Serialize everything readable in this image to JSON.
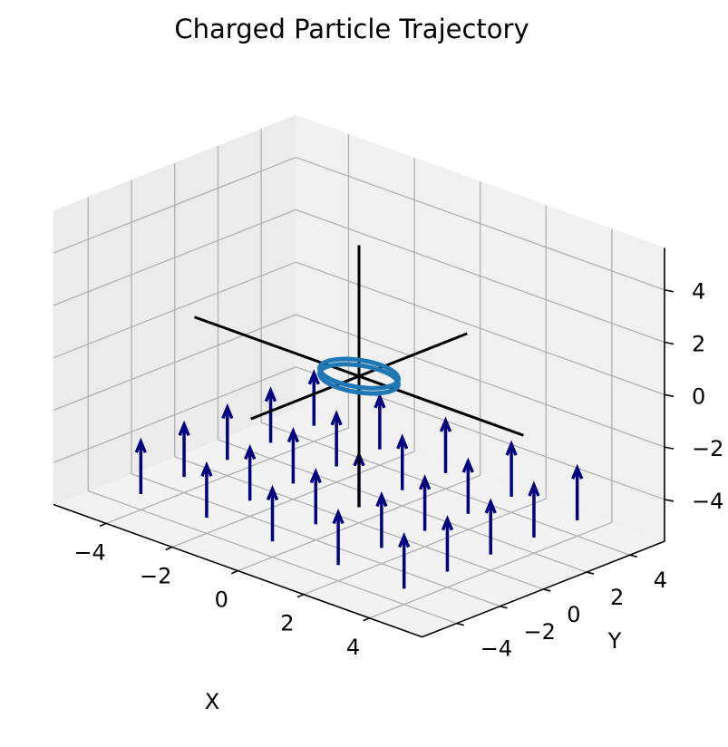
{
  "chart_data": {
    "type": "3d-quiver-line",
    "title": "Charged Particle Trajectory",
    "xlabel": "X",
    "ylabel": "Y",
    "zlabel": "",
    "xlim": [
      -5,
      5
    ],
    "ylim": [
      -5,
      5
    ],
    "zlim": [
      -5,
      5
    ],
    "xticks": [
      "−4",
      "−2",
      "0",
      "2",
      "4"
    ],
    "yticks": [
      "−4",
      "−2",
      "0",
      "2",
      "4"
    ],
    "zticks": [
      "−4",
      "−2",
      "0",
      "2",
      "4"
    ],
    "grid": true,
    "coordinate_axes": {
      "color": "#000000",
      "x_range": [
        -5,
        5
      ],
      "y_range": [
        -5,
        5
      ],
      "z_range": [
        -5,
        5
      ]
    },
    "magnetic_field": {
      "color": "#000080",
      "direction": [
        0,
        0,
        1
      ],
      "length": 2,
      "z_base": -5,
      "x_positions": [
        -4,
        -2,
        0,
        2,
        4
      ],
      "y_positions": [
        -4,
        -2,
        0,
        2,
        4
      ]
    },
    "trajectory": {
      "color": "#1f77b4",
      "center": [
        0,
        0,
        0
      ],
      "radius": 1,
      "z_values": [
        -0.1,
        0.1
      ]
    }
  }
}
